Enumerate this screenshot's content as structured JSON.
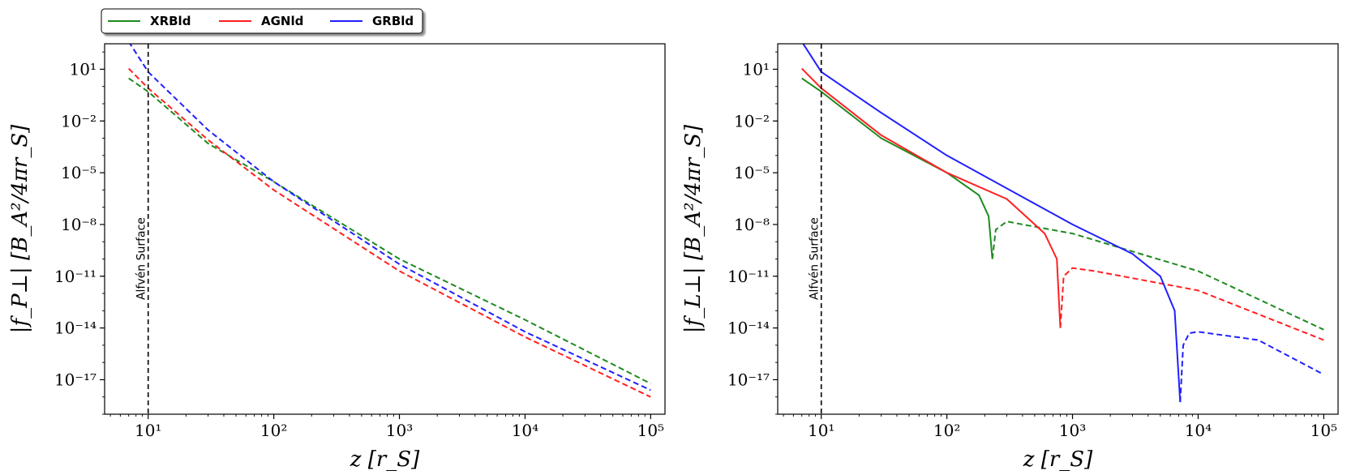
{
  "legend": [
    {
      "label": "XRBld",
      "color": "#1f8a1f"
    },
    {
      "label": "AGNld",
      "color": "#ff2020"
    },
    {
      "label": "GRBld",
      "color": "#2020ff"
    }
  ],
  "chart_data": [
    {
      "type": "line",
      "xlabel": "z [r_S]",
      "ylabel": "|f_P⊥| [B_A²/4πr_S]",
      "xscale": "log",
      "yscale": "log",
      "xlim": [
        4.5,
        130000
      ],
      "ylim": [
        1e-19,
        300.0
      ],
      "x_ticks": [
        {
          "value": 10,
          "label": "10^1"
        },
        {
          "value": 100,
          "label": "10^2"
        },
        {
          "value": 1000,
          "label": "10^3"
        },
        {
          "value": 10000,
          "label": "10^4"
        },
        {
          "value": 100000,
          "label": "10^5"
        }
      ],
      "y_ticks": [
        {
          "value": 10.0,
          "label": "10^1"
        },
        {
          "value": 0.01,
          "label": "10^-2"
        },
        {
          "value": 1e-05,
          "label": "10^-5"
        },
        {
          "value": 1e-08,
          "label": "10^-8"
        },
        {
          "value": 1e-11,
          "label": "10^-11"
        },
        {
          "value": 1e-14,
          "label": "10^-14"
        },
        {
          "value": 1e-17,
          "label": "10^-17"
        }
      ],
      "annotation": {
        "text": "Alfvén Surface",
        "x": 10
      },
      "series": [
        {
          "name": "XRBld",
          "color": "#1f8a1f",
          "style": "dashed",
          "points": [
            [
              7,
              3
            ],
            [
              10,
              0.5
            ],
            [
              30,
              0.0005
            ],
            [
              100,
              3e-06
            ],
            [
              1000,
              1e-10
            ],
            [
              10000,
              3e-14
            ],
            [
              100000,
              6e-18
            ]
          ]
        },
        {
          "name": "AGNld",
          "color": "#ff2020",
          "style": "dashed",
          "points": [
            [
              7,
              11
            ],
            [
              10,
              0.8
            ],
            [
              30,
              0.0008
            ],
            [
              100,
              1e-06
            ],
            [
              1000,
              2e-11
            ],
            [
              10000,
              3e-15
            ],
            [
              100000,
              1e-18
            ]
          ]
        },
        {
          "name": "GRBld",
          "color": "#2020ff",
          "style": "dashed",
          "points": [
            [
              7,
              400
            ],
            [
              10,
              7
            ],
            [
              30,
              0.003
            ],
            [
              100,
              3e-06
            ],
            [
              1000,
              5e-11
            ],
            [
              10000,
              6e-15
            ],
            [
              100000,
              2.5e-18
            ]
          ]
        }
      ]
    },
    {
      "type": "line",
      "xlabel": "z [r_S]",
      "ylabel": "|f_L⊥| [B_A²/4πr_S]",
      "xscale": "log",
      "yscale": "log",
      "xlim": [
        4.5,
        130000
      ],
      "ylim": [
        1e-19,
        300.0
      ],
      "x_ticks": [
        {
          "value": 10,
          "label": "10^1"
        },
        {
          "value": 100,
          "label": "10^2"
        },
        {
          "value": 1000,
          "label": "10^3"
        },
        {
          "value": 10000,
          "label": "10^4"
        },
        {
          "value": 100000,
          "label": "10^5"
        }
      ],
      "y_ticks": [
        {
          "value": 10.0,
          "label": "10^1"
        },
        {
          "value": 0.01,
          "label": "10^-2"
        },
        {
          "value": 1e-05,
          "label": "10^-5"
        },
        {
          "value": 1e-08,
          "label": "10^-8"
        },
        {
          "value": 1e-11,
          "label": "10^-11"
        },
        {
          "value": 1e-14,
          "label": "10^-14"
        },
        {
          "value": 1e-17,
          "label": "10^-17"
        }
      ],
      "annotation": {
        "text": "Alfvén Surface",
        "x": 10
      },
      "series": [
        {
          "name": "XRBld",
          "color": "#1f8a1f",
          "style": "solid",
          "points": [
            [
              7,
              3
            ],
            [
              10,
              0.5
            ],
            [
              30,
              0.001
            ],
            [
              100,
              1e-05
            ],
            [
              180,
              5e-07
            ],
            [
              215,
              3e-08
            ],
            [
              230,
              1e-10
            ]
          ]
        },
        {
          "name": "XRBld",
          "color": "#1f8a1f",
          "style": "dashed",
          "points": [
            [
              230,
              1e-10
            ],
            [
              245,
              5e-09
            ],
            [
              300,
              1.5e-08
            ],
            [
              400,
              1e-08
            ],
            [
              1000,
              3e-09
            ],
            [
              10000,
              2e-11
            ],
            [
              100000,
              8e-15
            ]
          ]
        },
        {
          "name": "AGNld",
          "color": "#ff2020",
          "style": "solid",
          "points": [
            [
              7,
              11
            ],
            [
              10,
              0.8
            ],
            [
              30,
              0.0015
            ],
            [
              100,
              1e-05
            ],
            [
              300,
              3e-07
            ],
            [
              600,
              3e-09
            ],
            [
              750,
              1e-10
            ],
            [
              800,
              1e-14
            ]
          ]
        },
        {
          "name": "AGNld",
          "color": "#ff2020",
          "style": "dashed",
          "points": [
            [
              800,
              1e-14
            ],
            [
              850,
              1e-11
            ],
            [
              1000,
              3e-11
            ],
            [
              1500,
              2e-11
            ],
            [
              10000,
              1.5e-12
            ],
            [
              100000,
              2e-15
            ]
          ]
        },
        {
          "name": "GRBld",
          "color": "#2020ff",
          "style": "solid",
          "points": [
            [
              7,
              400
            ],
            [
              10,
              7
            ],
            [
              30,
              0.03
            ],
            [
              100,
              0.0001
            ],
            [
              1000,
              1e-08
            ],
            [
              3000,
              2e-10
            ],
            [
              5000,
              1e-11
            ],
            [
              6500,
              1e-13
            ],
            [
              7200,
              5e-19
            ]
          ]
        },
        {
          "name": "GRBld",
          "color": "#2020ff",
          "style": "dashed",
          "points": [
            [
              7200,
              5e-19
            ],
            [
              7600,
              1e-15
            ],
            [
              8500,
              5e-15
            ],
            [
              10000,
              6e-15
            ],
            [
              30000,
              2e-15
            ],
            [
              100000,
              2e-17
            ]
          ]
        }
      ]
    }
  ]
}
